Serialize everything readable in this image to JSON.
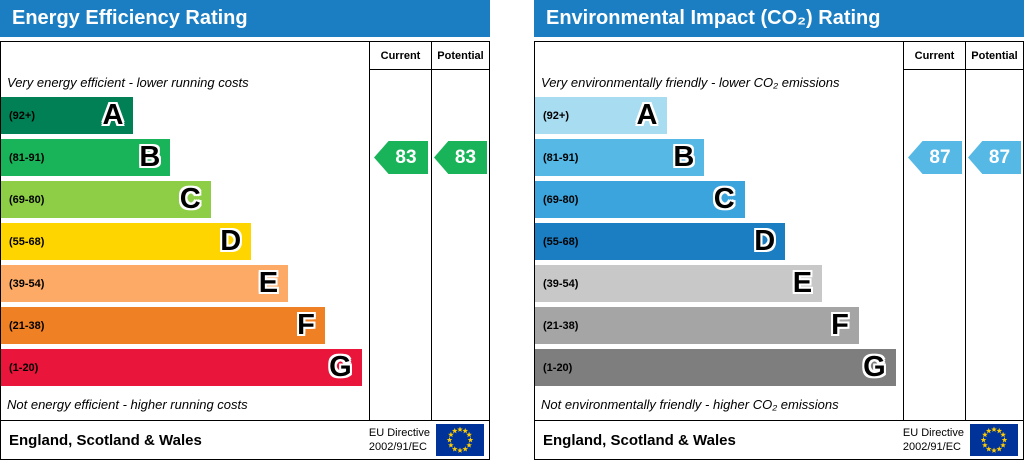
{
  "panels": [
    {
      "title": "Energy Efficiency Rating",
      "header_color": "#1b7ec2",
      "columns": {
        "current": "Current",
        "potential": "Potential"
      },
      "top_note": "Very energy efficient - lower running costs",
      "bottom_note": "Not energy efficient - higher running costs",
      "bands": [
        {
          "range": "(92+)",
          "letter": "A",
          "color": "#008054",
          "width_pct": 36
        },
        {
          "range": "(81-91)",
          "letter": "B",
          "color": "#19b459",
          "width_pct": 46
        },
        {
          "range": "(69-80)",
          "letter": "C",
          "color": "#8dce46",
          "width_pct": 57
        },
        {
          "range": "(55-68)",
          "letter": "D",
          "color": "#ffd500",
          "width_pct": 68
        },
        {
          "range": "(39-54)",
          "letter": "E",
          "color": "#fcaa65",
          "width_pct": 78
        },
        {
          "range": "(21-38)",
          "letter": "F",
          "color": "#ef8023",
          "width_pct": 88
        },
        {
          "range": "(1-20)",
          "letter": "G",
          "color": "#e9153b",
          "width_pct": 98
        }
      ],
      "current": {
        "value": "83",
        "band_index": 1,
        "color": "#19b459"
      },
      "potential": {
        "value": "83",
        "band_index": 1,
        "color": "#19b459"
      },
      "footer_region": "England, Scotland & Wales",
      "directive_line1": "EU Directive",
      "directive_line2": "2002/91/EC"
    },
    {
      "title": "Environmental Impact (CO₂) Rating",
      "header_color": "#1b7ec2",
      "columns": {
        "current": "Current",
        "potential": "Potential"
      },
      "top_note": "Very environmentally friendly - lower CO₂ emissions",
      "bottom_note": "Not environmentally friendly - higher CO₂ emissions",
      "bands": [
        {
          "range": "(92+)",
          "letter": "A",
          "color": "#a8dcf0",
          "width_pct": 36
        },
        {
          "range": "(81-91)",
          "letter": "B",
          "color": "#56b8e5",
          "width_pct": 46
        },
        {
          "range": "(69-80)",
          "letter": "C",
          "color": "#3ca4dc",
          "width_pct": 57
        },
        {
          "range": "(55-68)",
          "letter": "D",
          "color": "#1b7dc2",
          "width_pct": 68
        },
        {
          "range": "(39-54)",
          "letter": "E",
          "color": "#c8c8c8",
          "width_pct": 78
        },
        {
          "range": "(21-38)",
          "letter": "F",
          "color": "#a5a5a5",
          "width_pct": 88
        },
        {
          "range": "(1-20)",
          "letter": "G",
          "color": "#7e7e7e",
          "width_pct": 98
        }
      ],
      "current": {
        "value": "87",
        "band_index": 1,
        "color": "#56b8e5"
      },
      "potential": {
        "value": "87",
        "band_index": 1,
        "color": "#56b8e5"
      },
      "footer_region": "England, Scotland & Wales",
      "directive_line1": "EU Directive",
      "directive_line2": "2002/91/EC"
    }
  ],
  "chart_data": [
    {
      "type": "bar",
      "title": "Energy Efficiency Rating",
      "categories": [
        "A (92+)",
        "B (81-91)",
        "C (69-80)",
        "D (55-68)",
        "E (39-54)",
        "F (21-38)",
        "G (1-20)"
      ],
      "band_colors": [
        "#008054",
        "#19b459",
        "#8dce46",
        "#ffd500",
        "#fcaa65",
        "#ef8023",
        "#e9153b"
      ],
      "current_rating": 83,
      "potential_rating": 83,
      "current_band": "B",
      "potential_band": "B",
      "top_label": "Very energy efficient - lower running costs",
      "bottom_label": "Not energy efficient - higher running costs",
      "region": "England, Scotland & Wales",
      "directive": "EU Directive 2002/91/EC"
    },
    {
      "type": "bar",
      "title": "Environmental Impact (CO₂) Rating",
      "categories": [
        "A (92+)",
        "B (81-91)",
        "C (69-80)",
        "D (55-68)",
        "E (39-54)",
        "F (21-38)",
        "G (1-20)"
      ],
      "band_colors": [
        "#a8dcf0",
        "#56b8e5",
        "#3ca4dc",
        "#1b7dc2",
        "#c8c8c8",
        "#a5a5a5",
        "#7e7e7e"
      ],
      "current_rating": 87,
      "potential_rating": 87,
      "current_band": "B",
      "potential_band": "B",
      "top_label": "Very environmentally friendly - lower CO₂ emissions",
      "bottom_label": "Not environmentally friendly - higher CO₂ emissions",
      "region": "England, Scotland & Wales",
      "directive": "EU Directive 2002/91/EC"
    }
  ]
}
